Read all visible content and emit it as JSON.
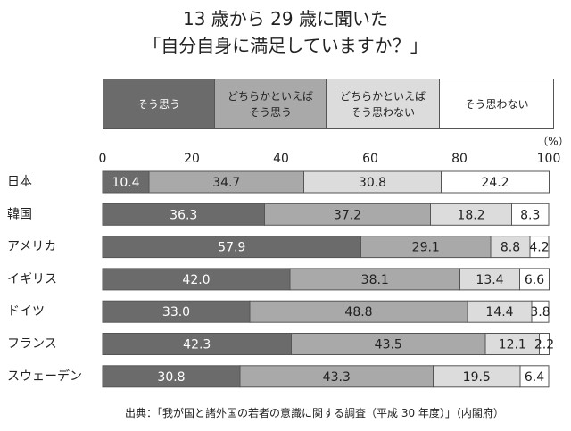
{
  "chart_data": {
    "type": "stacked-bar-horizontal",
    "title": "13 歳から 29 歳に聞いた\n「自分自身に満足していますか？」",
    "categories": [
      "日本",
      "韓国",
      "アメリカ",
      "イギリス",
      "ドイツ",
      "フランス",
      "スウェーデン"
    ],
    "series": [
      {
        "name": "そう思う",
        "color": "#6b6b6b",
        "values": [
          10.4,
          36.3,
          57.9,
          42.0,
          33.0,
          42.3,
          30.8
        ],
        "value_labels": [
          "10.4",
          "36.3",
          "57.9",
          "42.0",
          "33.0",
          "42.3",
          "30.8"
        ]
      },
      {
        "name": "どちらかといえば\nそう思う",
        "color": "#a9a9a9",
        "values": [
          34.7,
          37.2,
          29.1,
          38.1,
          48.8,
          43.5,
          43.3
        ],
        "value_labels": [
          "34.7",
          "37.2",
          "29.1",
          "38.1",
          "48.8",
          "43.5",
          "43.3"
        ]
      },
      {
        "name": "どちらかといえば\nそう思わない",
        "color": "#dcdcdc",
        "values": [
          30.8,
          18.2,
          8.8,
          13.4,
          14.4,
          12.1,
          19.5
        ],
        "value_labels": [
          "30.8",
          "18.2",
          "8.8",
          "13.4",
          "14.4",
          "12.1",
          "19.5"
        ]
      },
      {
        "name": "そう思わない",
        "color": "#ffffff",
        "values": [
          24.2,
          8.3,
          4.2,
          6.6,
          3.8,
          2.2,
          6.4
        ],
        "value_labels": [
          "24.2",
          "8.3",
          "4.2",
          "6.6",
          "3.8",
          "2.2",
          "6.4"
        ]
      }
    ],
    "xlim": [
      0,
      100
    ],
    "xticks": [
      0,
      20,
      40,
      60,
      80,
      100
    ],
    "x_unit": "（%）",
    "source": "出典：「我が国と諸外国の若者の意識に関する調査（平成 30 年度）」（内閣府）"
  }
}
